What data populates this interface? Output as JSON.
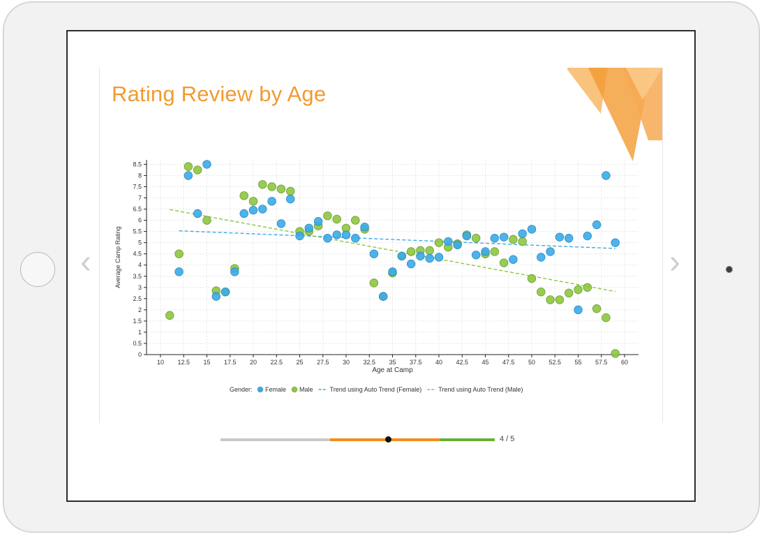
{
  "slide": {
    "title": "Rating Review by Age",
    "nav_prev_glyph": "‹",
    "nav_next_glyph": "›",
    "page_indicator": "4 / 5"
  },
  "progress": {
    "position": 0.61,
    "segment_colors": [
      "#c8c8c8",
      "#f28c1a",
      "#66b032"
    ]
  },
  "colors": {
    "title": "#f29a31",
    "female": "#3aabe8",
    "male": "#8dc63f",
    "deco": [
      "#f9b866",
      "#f29a31",
      "#f7a953"
    ]
  },
  "chart_data": {
    "type": "scatter",
    "xlabel": "Age at Camp",
    "ylabel": "Average Camp Rating",
    "xlim": [
      8.5,
      61.5
    ],
    "ylim": [
      0,
      8.7
    ],
    "xticks": [
      10,
      12.5,
      15,
      17.5,
      20,
      22.5,
      25,
      27.5,
      30,
      32.5,
      35,
      37.5,
      40,
      42.5,
      45,
      47.5,
      50,
      52.5,
      55,
      57.5,
      60
    ],
    "yticks": [
      0,
      0.5,
      1,
      1.5,
      2,
      2.5,
      3,
      3.5,
      4,
      4.5,
      5,
      5.5,
      6,
      6.5,
      7,
      7.5,
      8,
      8.5
    ],
    "grid": true,
    "legend": {
      "position": "bottom",
      "title": "Gender:",
      "items": [
        {
          "label": "Female",
          "kind": "marker",
          "series": "Female"
        },
        {
          "label": "Male",
          "kind": "marker",
          "series": "Male"
        },
        {
          "label": "Trend using Auto Trend (Female)",
          "kind": "line",
          "series": "Female"
        },
        {
          "label": "Trend using Auto Trend (Male)",
          "kind": "line",
          "series": "Male"
        }
      ]
    },
    "series": [
      {
        "name": "Female",
        "color": "#3aabe8",
        "points": [
          [
            12,
            3.7
          ],
          [
            13,
            8.0
          ],
          [
            14,
            6.3
          ],
          [
            15,
            8.5
          ],
          [
            16,
            2.6
          ],
          [
            17,
            2.8
          ],
          [
            18,
            3.7
          ],
          [
            19,
            6.3
          ],
          [
            20,
            6.45
          ],
          [
            21,
            6.5
          ],
          [
            22,
            6.85
          ],
          [
            23,
            5.85
          ],
          [
            24,
            6.95
          ],
          [
            25,
            5.3
          ],
          [
            26,
            5.65
          ],
          [
            27,
            5.95
          ],
          [
            28,
            5.2
          ],
          [
            29,
            5.35
          ],
          [
            30,
            5.35
          ],
          [
            31,
            5.2
          ],
          [
            32,
            5.7
          ],
          [
            33,
            4.5
          ],
          [
            34,
            2.6
          ],
          [
            35,
            3.7
          ],
          [
            36,
            4.4
          ],
          [
            37,
            4.05
          ],
          [
            38,
            4.4
          ],
          [
            39,
            4.3
          ],
          [
            40,
            4.35
          ],
          [
            41,
            5.05
          ],
          [
            42,
            4.9
          ],
          [
            43,
            5.3
          ],
          [
            44,
            4.45
          ],
          [
            45,
            4.6
          ],
          [
            46,
            5.2
          ],
          [
            47,
            5.25
          ],
          [
            48,
            4.25
          ],
          [
            49,
            5.4
          ],
          [
            50,
            5.6
          ],
          [
            51,
            4.35
          ],
          [
            52,
            4.6
          ],
          [
            53,
            5.25
          ],
          [
            54,
            5.2
          ],
          [
            55,
            2.0
          ],
          [
            56,
            5.3
          ],
          [
            57,
            5.8
          ],
          [
            58,
            8.0
          ],
          [
            59,
            5.0
          ]
        ]
      },
      {
        "name": "Male",
        "color": "#8dc63f",
        "points": [
          [
            11,
            1.75
          ],
          [
            12,
            4.5
          ],
          [
            13,
            8.4
          ],
          [
            14,
            8.25
          ],
          [
            15,
            6.0
          ],
          [
            16,
            2.85
          ],
          [
            17,
            2.8
          ],
          [
            18,
            3.85
          ],
          [
            19,
            7.1
          ],
          [
            20,
            6.85
          ],
          [
            21,
            7.6
          ],
          [
            22,
            7.5
          ],
          [
            23,
            7.4
          ],
          [
            24,
            7.3
          ],
          [
            25,
            5.5
          ],
          [
            26,
            5.5
          ],
          [
            27,
            5.75
          ],
          [
            28,
            6.2
          ],
          [
            29,
            6.05
          ],
          [
            30,
            5.65
          ],
          [
            31,
            6.0
          ],
          [
            32,
            5.6
          ],
          [
            33,
            3.2
          ],
          [
            34,
            2.6
          ],
          [
            35,
            3.65
          ],
          [
            36,
            4.4
          ],
          [
            37,
            4.6
          ],
          [
            38,
            4.65
          ],
          [
            39,
            4.65
          ],
          [
            40,
            5.0
          ],
          [
            41,
            4.8
          ],
          [
            42,
            4.95
          ],
          [
            43,
            5.35
          ],
          [
            44,
            5.2
          ],
          [
            45,
            4.5
          ],
          [
            46,
            4.6
          ],
          [
            47,
            4.1
          ],
          [
            48,
            5.15
          ],
          [
            49,
            5.05
          ],
          [
            50,
            3.4
          ],
          [
            51,
            2.8
          ],
          [
            52,
            2.45
          ],
          [
            53,
            2.45
          ],
          [
            54,
            2.75
          ],
          [
            55,
            2.9
          ],
          [
            56,
            3.0
          ],
          [
            57,
            2.05
          ],
          [
            58,
            1.65
          ],
          [
            59,
            0.05
          ]
        ]
      }
    ],
    "trendlines": [
      {
        "series": "Female",
        "color": "#3aabe8",
        "from": [
          12,
          5.53
        ],
        "to": [
          59,
          4.74
        ]
      },
      {
        "series": "Male",
        "color": "#8dc63f",
        "from": [
          11,
          6.48
        ],
        "to": [
          59,
          2.82
        ]
      }
    ]
  }
}
